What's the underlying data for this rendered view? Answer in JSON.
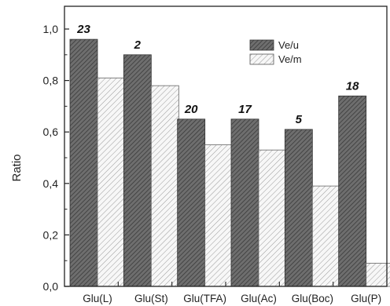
{
  "chart_data": {
    "type": "bar",
    "title": "",
    "xlabel": "",
    "ylabel": "Ratio",
    "ylim": [
      0.0,
      1.0
    ],
    "yticks": [
      "0,0",
      "0,2",
      "0,4",
      "0,6",
      "0,8",
      "1,0"
    ],
    "yticks_values": [
      0.0,
      0.2,
      0.4,
      0.6,
      0.8,
      1.0
    ],
    "categories": [
      "Glu(L)",
      "Glu(St)",
      "Glu(TFA)",
      "Glu(Ac)",
      "Glu(Boc)",
      "Glu(P)"
    ],
    "series": [
      {
        "name": "Ve/u",
        "values": [
          0.96,
          0.9,
          0.65,
          0.65,
          0.61,
          0.74
        ],
        "color": "#6b6b6b",
        "pattern": "dense-hatch"
      },
      {
        "name": "Ve/m",
        "values": [
          0.81,
          0.78,
          0.55,
          0.53,
          0.39,
          0.09
        ],
        "color": "#f2f2f2",
        "pattern": "light-hatch"
      }
    ],
    "annotations": [
      "23",
      "2",
      "20",
      "17",
      "5",
      "18"
    ],
    "legend": {
      "placement": "top-center",
      "entries": [
        "Ve/u",
        "Ve/m"
      ]
    },
    "grid": false
  }
}
